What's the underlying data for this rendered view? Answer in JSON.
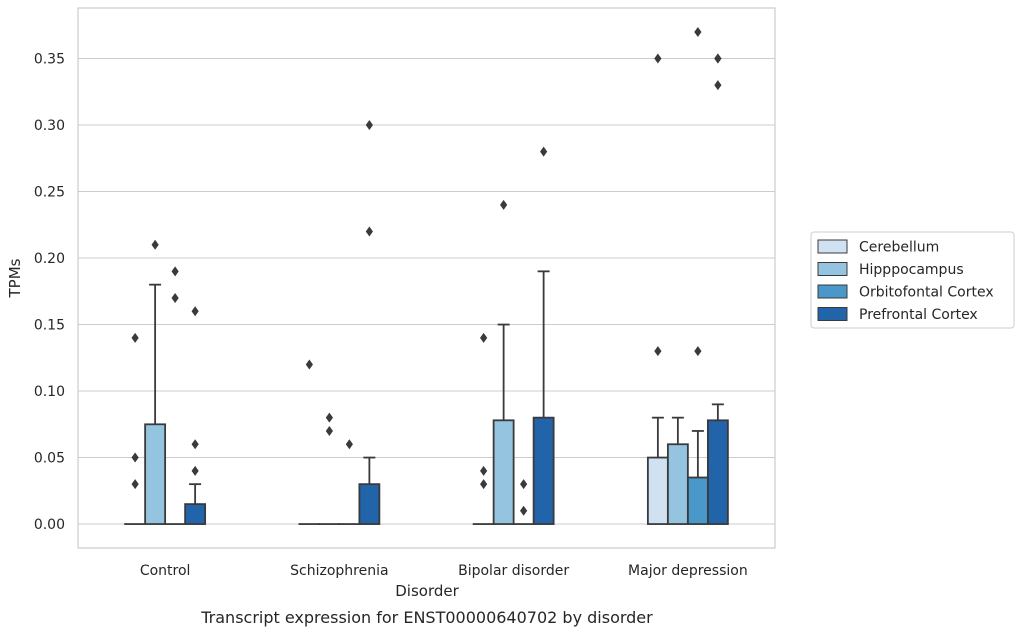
{
  "chart_data": {
    "type": "bar",
    "caption": "Transcript expression for ENST00000640702 by disorder",
    "xlabel": "Disorder",
    "ylabel": "TPMs",
    "ylim": [
      -0.018,
      0.388
    ],
    "yticks": [
      0.0,
      0.05,
      0.1,
      0.15,
      0.2,
      0.25,
      0.3,
      0.35
    ],
    "grid": true,
    "legend_position": "right",
    "categories": [
      "Control",
      "Schizophrenia",
      "Bipolar disorder",
      "Major depression"
    ],
    "series": [
      {
        "name": "Cerebellum",
        "color": "#d0e1f2",
        "values": [
          0.0,
          0.0,
          0.0,
          0.05
        ],
        "whisker_high": [
          null,
          null,
          null,
          0.08
        ],
        "outliers": [
          [
            0.03,
            0.05,
            0.14
          ],
          [
            0.12
          ],
          [
            0.03,
            0.04,
            0.14
          ],
          [
            0.13,
            0.35
          ]
        ]
      },
      {
        "name": "Hipppocampus",
        "color": "#94c4df",
        "values": [
          0.075,
          0.0,
          0.078,
          0.06
        ],
        "whisker_high": [
          0.18,
          null,
          0.15,
          0.08
        ],
        "outliers": [
          [
            0.21
          ],
          [
            0.07,
            0.08
          ],
          [
            0.24
          ],
          []
        ]
      },
      {
        "name": "Orbitofontal Cortex",
        "color": "#4a98c9",
        "values": [
          0.0,
          0.0,
          0.0,
          0.035
        ],
        "whisker_high": [
          null,
          null,
          null,
          0.07
        ],
        "outliers": [
          [
            0.17,
            0.19
          ],
          [
            0.06
          ],
          [
            0.01,
            0.03
          ],
          [
            0.13,
            0.37
          ]
        ]
      },
      {
        "name": "Prefrontal Cortex",
        "color": "#2264aa",
        "values": [
          0.015,
          0.03,
          0.08,
          0.078
        ],
        "whisker_high": [
          0.03,
          0.05,
          0.19,
          0.09
        ],
        "outliers": [
          [
            0.04,
            0.06,
            0.16
          ],
          [
            0.22,
            0.3
          ],
          [
            0.28
          ],
          [
            0.33,
            0.35,
            0.35
          ]
        ]
      }
    ],
    "colors": {
      "grid": "#cccccc",
      "edge": "#3a3a3a",
      "frame": "#cccccc"
    }
  }
}
